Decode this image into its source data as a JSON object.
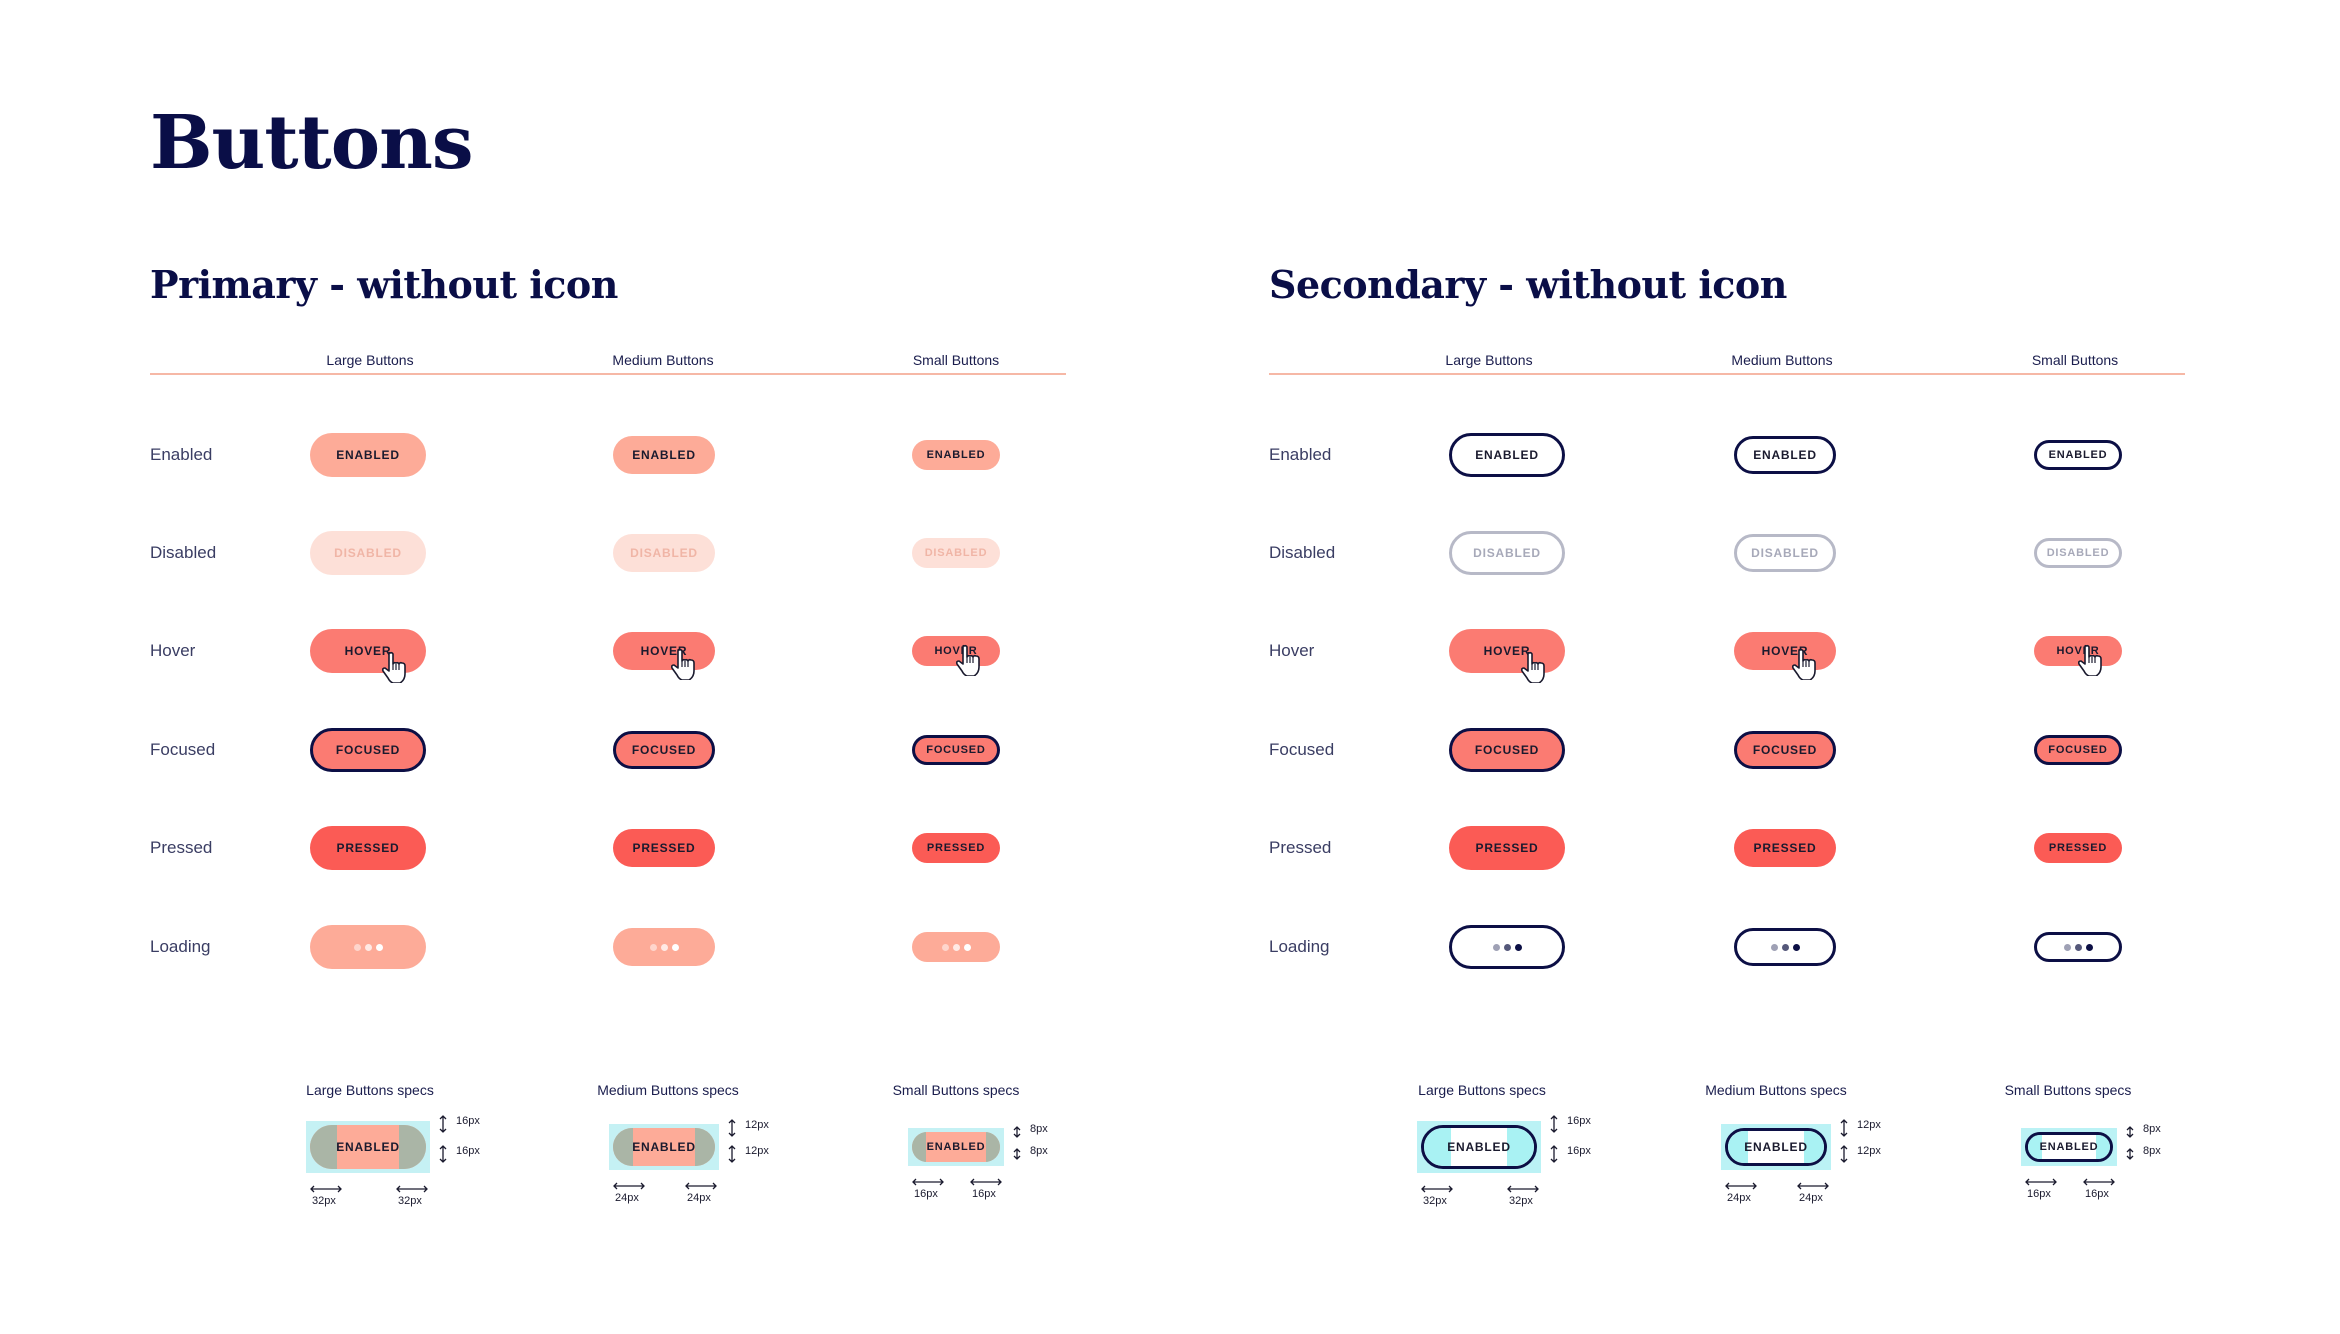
{
  "page_title": "Buttons",
  "sections": [
    {
      "title": "Primary - without icon",
      "columns": [
        "Large Buttons",
        "Medium Buttons",
        "Small Buttons"
      ],
      "states": [
        {
          "label": "Enabled",
          "button_text": "ENABLED"
        },
        {
          "label": "Disabled",
          "button_text": "DISABLED"
        },
        {
          "label": "Hover",
          "button_text": "HOVER"
        },
        {
          "label": "Focused",
          "button_text": "FOCUSED"
        },
        {
          "label": "Pressed",
          "button_text": "PRESSED"
        },
        {
          "label": "Loading",
          "button_text": ""
        }
      ],
      "specs": [
        {
          "title": "Large Buttons specs",
          "label": "ENABLED",
          "vertical": "16px",
          "vertical2": "16px",
          "horizontal": "32px",
          "horizontal2": "32px"
        },
        {
          "title": "Medium Buttons specs",
          "label": "ENABLED",
          "vertical": "12px",
          "vertical2": "12px",
          "horizontal": "24px",
          "horizontal2": "24px"
        },
        {
          "title": "Small Buttons specs",
          "label": "ENABLED",
          "vertical": "8px",
          "vertical2": "8px",
          "horizontal": "16px",
          "horizontal2": "16px"
        }
      ]
    },
    {
      "title": "Secondary - without icon",
      "columns": [
        "Large Buttons",
        "Medium Buttons",
        "Small Buttons"
      ],
      "states": [
        {
          "label": "Enabled",
          "button_text": "ENABLED"
        },
        {
          "label": "Disabled",
          "button_text": "DISABLED"
        },
        {
          "label": "Hover",
          "button_text": "HOVER"
        },
        {
          "label": "Focused",
          "button_text": "FOCUSED"
        },
        {
          "label": "Pressed",
          "button_text": "PRESSED"
        },
        {
          "label": "Loading",
          "button_text": ""
        }
      ],
      "specs": [
        {
          "title": "Large Buttons specs",
          "label": "ENABLED",
          "vertical": "16px",
          "vertical2": "16px",
          "horizontal": "32px",
          "horizontal2": "32px"
        },
        {
          "title": "Medium Buttons specs",
          "label": "ENABLED",
          "vertical": "12px",
          "vertical2": "12px",
          "horizontal": "24px",
          "horizontal2": "24px"
        },
        {
          "title": "Small Buttons specs",
          "label": "ENABLED",
          "vertical": "8px",
          "vertical2": "8px",
          "horizontal": "16px",
          "horizontal2": "16px"
        }
      ]
    }
  ],
  "icons": {
    "cursor": "hand-pointer-icon",
    "loading": "loading-dots-icon",
    "vertical_arrow": "vertical-arrow-icon",
    "horizontal_arrow": "horizontal-arrow-icon"
  },
  "colors": {
    "navy": "#0c0f45",
    "primary_enabled": "#fdab98",
    "primary_disabled": "#fde0d8",
    "hover": "#fb7b72",
    "pressed": "#fb5b55",
    "divider": "#f6b8a6",
    "spec_padding": "#a9f2f3"
  }
}
